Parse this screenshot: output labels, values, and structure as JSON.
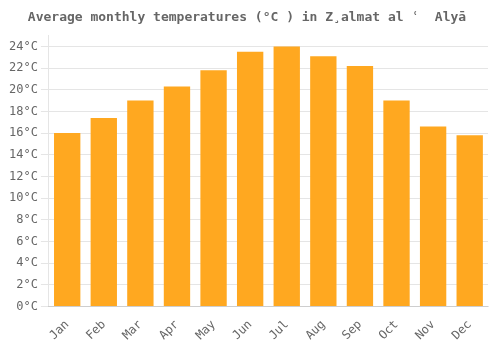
{
  "chart_data": {
    "type": "bar",
    "title": "Average monthly temperatures (°C ) in Z̧almat al ʿ  Alyā",
    "categories": [
      "Jan",
      "Feb",
      "Mar",
      "Apr",
      "May",
      "Jun",
      "Jul",
      "Aug",
      "Sep",
      "Oct",
      "Nov",
      "Dec"
    ],
    "values": [
      16.0,
      17.4,
      19.0,
      20.3,
      21.8,
      23.5,
      24.0,
      23.1,
      22.2,
      19.0,
      16.6,
      15.8
    ],
    "color": "#FFA820",
    "ylim": [
      0,
      25
    ],
    "yticks": [
      {
        "value": 0,
        "label": "0°C"
      },
      {
        "value": 2,
        "label": "2°C"
      },
      {
        "value": 4,
        "label": "4°C"
      },
      {
        "value": 6,
        "label": "6°C"
      },
      {
        "value": 8,
        "label": "8°C"
      },
      {
        "value": 10,
        "label": "10°C"
      },
      {
        "value": 12,
        "label": "12°C"
      },
      {
        "value": 14,
        "label": "14°C"
      },
      {
        "value": 16,
        "label": "16°C"
      },
      {
        "value": 18,
        "label": "18°C"
      },
      {
        "value": 20,
        "label": "20°C"
      },
      {
        "value": 22,
        "label": "22°C"
      },
      {
        "value": 24,
        "label": "24°C"
      }
    ],
    "grid": true
  }
}
